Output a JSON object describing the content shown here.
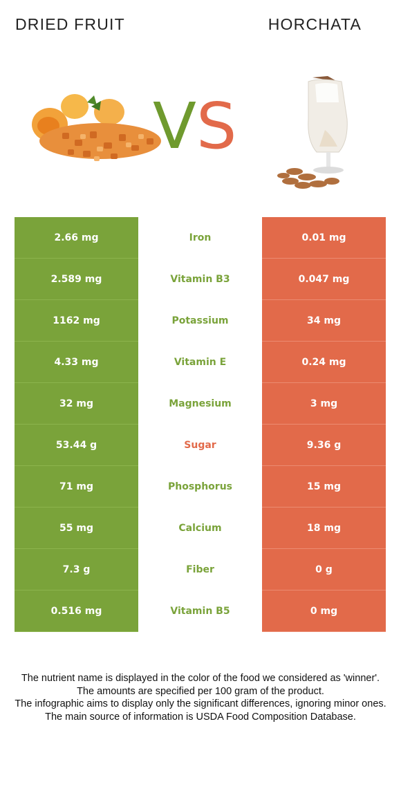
{
  "header": {
    "left_title": "DRIED FRUIT",
    "right_title": "HORCHATA",
    "vs_v": "V",
    "vs_s": "S"
  },
  "colors": {
    "winner_left": "#7aa33a",
    "winner_right": "#e26a4a"
  },
  "rows": [
    {
      "left": "2.66 mg",
      "nutrient": "Iron",
      "right": "0.01 mg",
      "winner": "left"
    },
    {
      "left": "2.589 mg",
      "nutrient": "Vitamin B3",
      "right": "0.047 mg",
      "winner": "left"
    },
    {
      "left": "1162 mg",
      "nutrient": "Potassium",
      "right": "34 mg",
      "winner": "left"
    },
    {
      "left": "4.33 mg",
      "nutrient": "Vitamin E",
      "right": "0.24 mg",
      "winner": "left"
    },
    {
      "left": "32 mg",
      "nutrient": "Magnesium",
      "right": "3 mg",
      "winner": "left"
    },
    {
      "left": "53.44 g",
      "nutrient": "Sugar",
      "right": "9.36 g",
      "winner": "right"
    },
    {
      "left": "71 mg",
      "nutrient": "Phosphorus",
      "right": "15 mg",
      "winner": "left"
    },
    {
      "left": "55 mg",
      "nutrient": "Calcium",
      "right": "18 mg",
      "winner": "left"
    },
    {
      "left": "7.3 g",
      "nutrient": "Fiber",
      "right": "0 g",
      "winner": "left"
    },
    {
      "left": "0.516 mg",
      "nutrient": "Vitamin B5",
      "right": "0 mg",
      "winner": "left"
    }
  ],
  "notes": [
    "The nutrient name is displayed in the color of the food we considered as 'winner'.",
    "The amounts are specified per 100 gram of the product.",
    "The infographic aims to display only the significant differences, ignoring minor ones.",
    "The main source of information is USDA Food Composition Database."
  ]
}
